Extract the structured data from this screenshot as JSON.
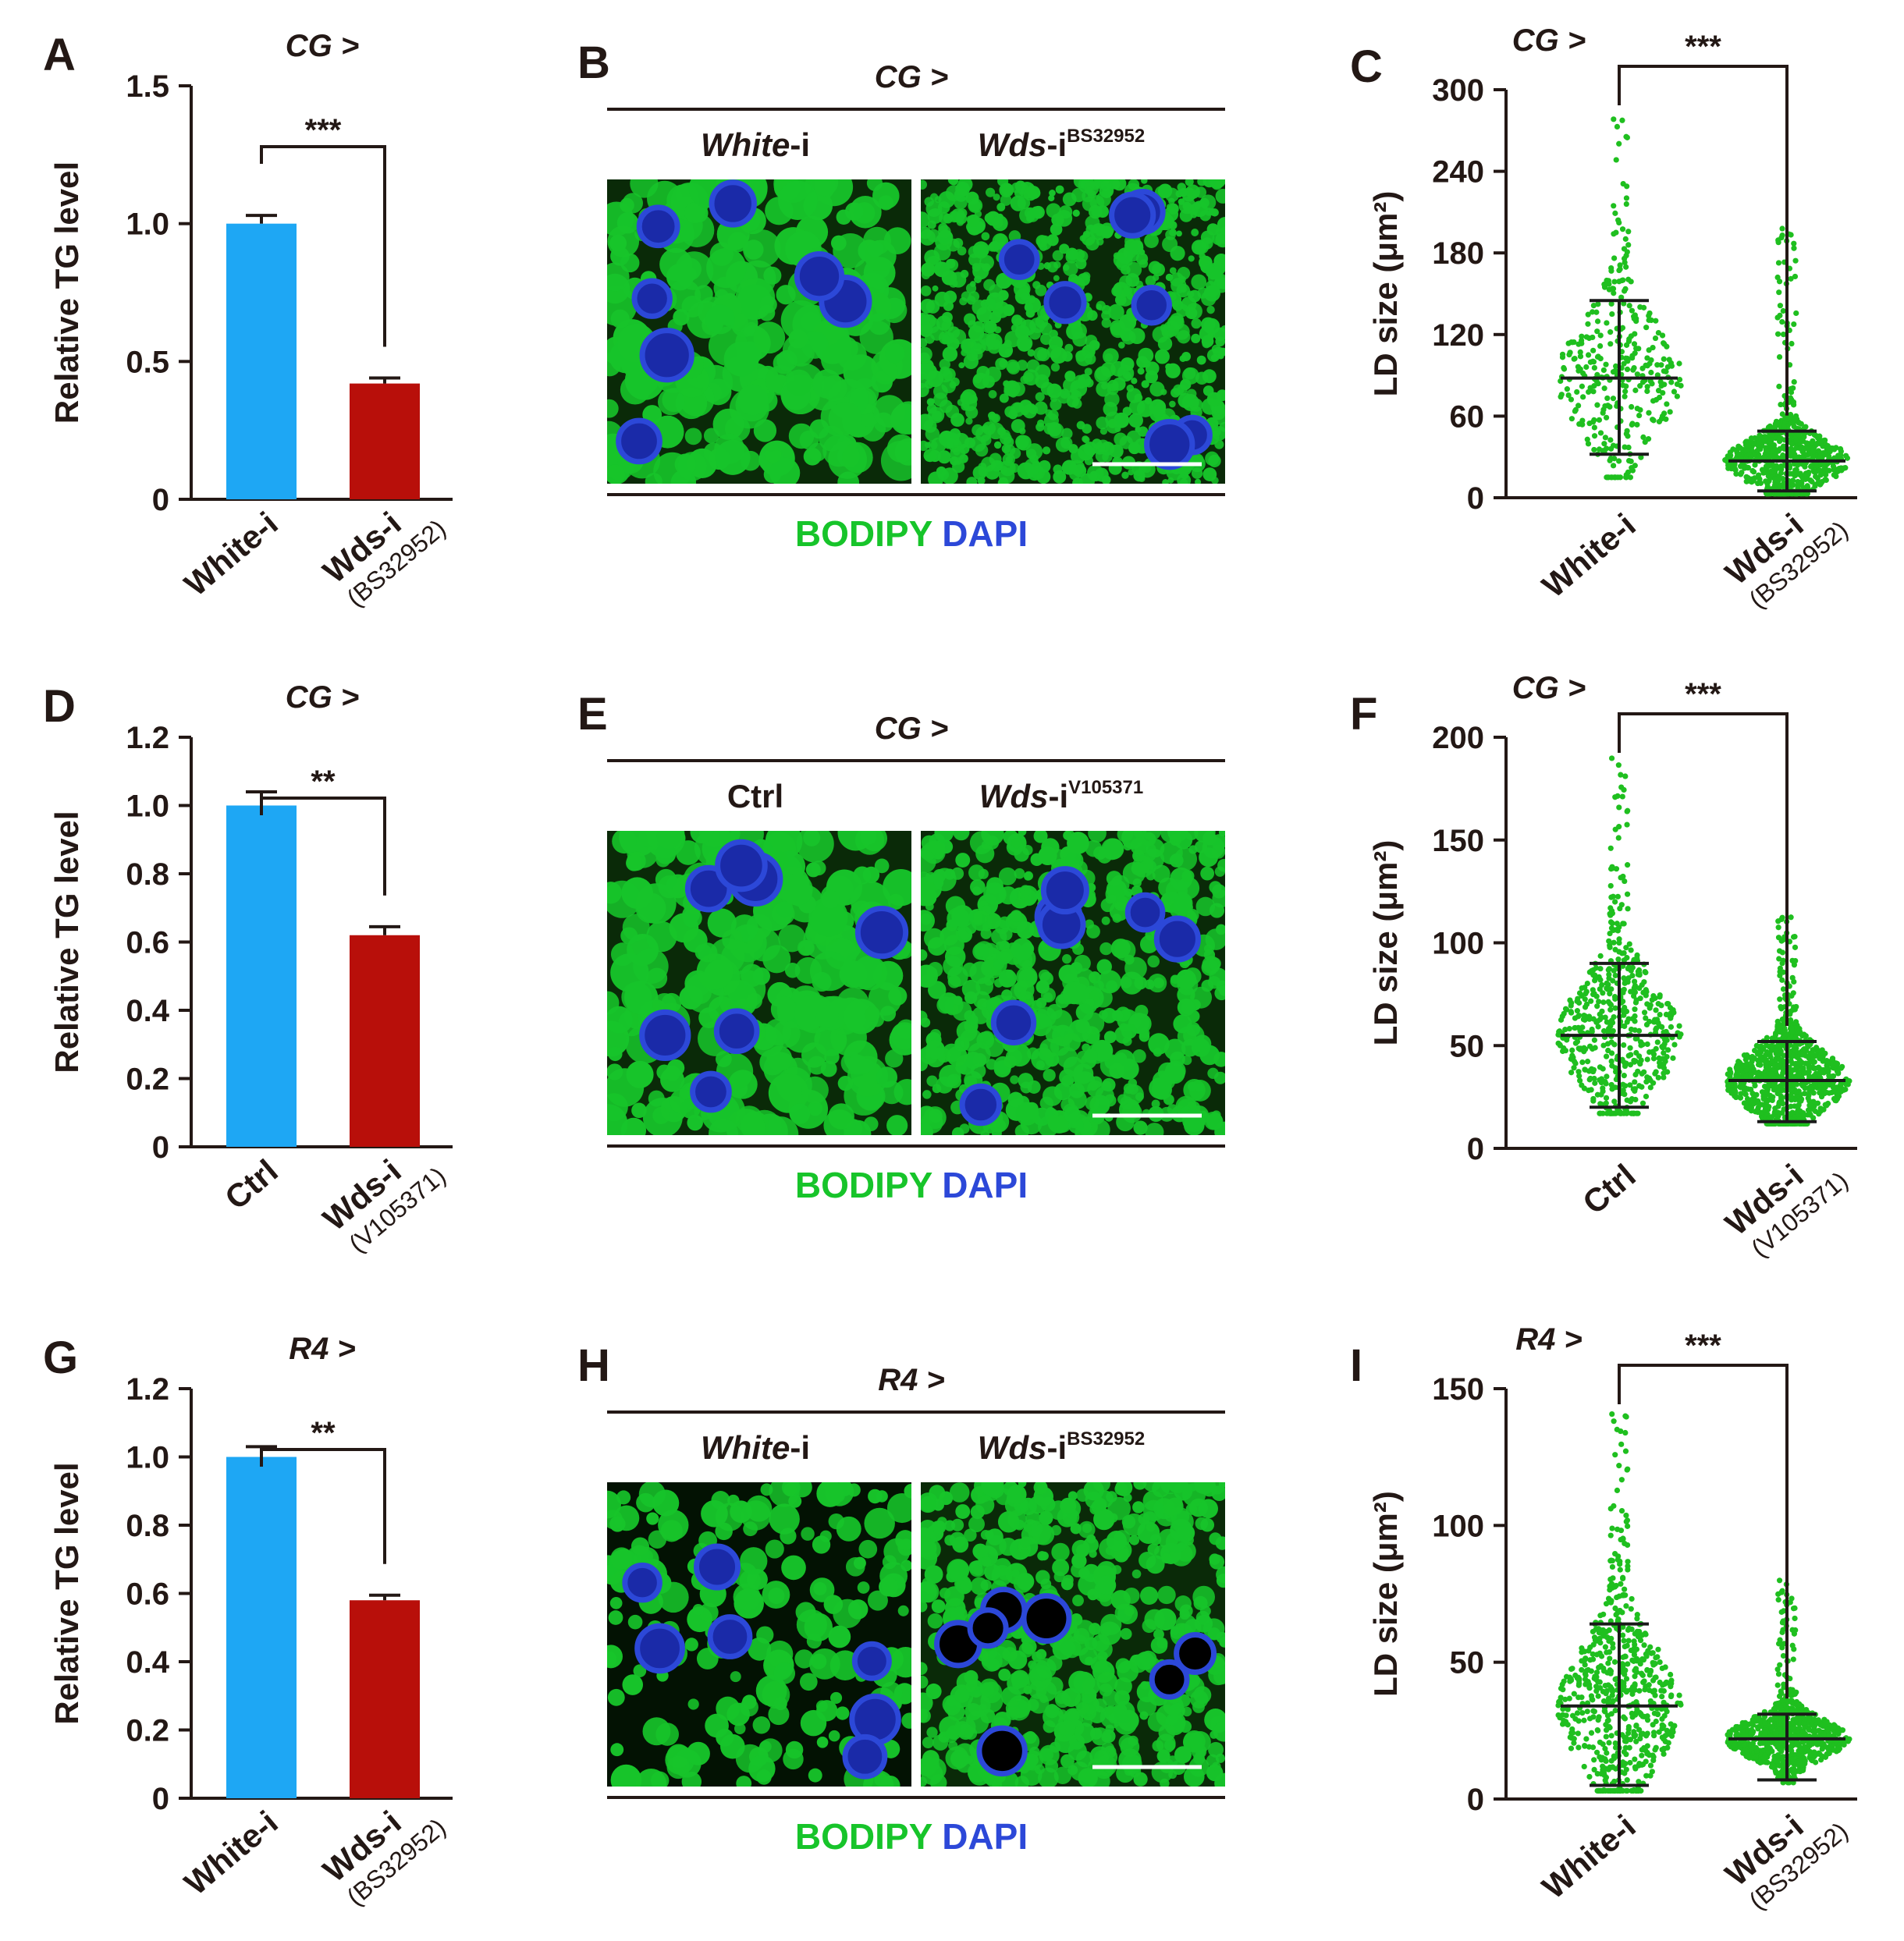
{
  "colors": {
    "control": "#1ea7f4",
    "rnai": "#b80f0a",
    "dots": "#1fbf1f",
    "bodipy": "#17c42a",
    "dapi": "#2c48d8",
    "text": "#231815"
  },
  "rows": [
    {
      "genotype": "CG >",
      "bar": {
        "label": "A",
        "ylabel": "Relative TG level",
        "ymax": 1.5,
        "ticks": [
          "1.5",
          "1.0",
          "0.5",
          "0"
        ],
        "stars": "***",
        "categories": [
          {
            "main": "White-i",
            "sub": ""
          },
          {
            "main": "Wds-i",
            "sub": "(BS32952)"
          }
        ],
        "values": [
          1.0,
          0.42
        ],
        "errors": [
          0.03,
          0.02
        ]
      },
      "image": {
        "label": "B",
        "title": "CG >",
        "left": {
          "name": "White",
          "suffix": "-i",
          "sup": ""
        },
        "right": {
          "name": "Wds",
          "suffix": "-i",
          "sup": "BS32952"
        },
        "stain_green": "BODIPY",
        "stain_blue": "DAPI",
        "left_density": "large",
        "right_density": "small"
      },
      "dot": {
        "label": "C",
        "ylabel": "LD size (μm²)",
        "ymax": 300,
        "ticks": [
          "300",
          "240",
          "180",
          "120",
          "60",
          "0"
        ],
        "stars": "***",
        "genotype": "CG >",
        "categories": [
          {
            "main": "White-i",
            "sub": ""
          },
          {
            "main": "Wds-i",
            "sub": "(BS32952)"
          }
        ],
        "groups": [
          {
            "mean": 88,
            "sd_low": 32,
            "sd_high": 145,
            "min": 15,
            "max": 292,
            "n": 330
          },
          {
            "mean": 27,
            "sd_low": 5,
            "sd_high": 49,
            "min": 3,
            "max": 205,
            "n": 700
          }
        ]
      }
    },
    {
      "genotype": "CG >",
      "bar": {
        "label": "D",
        "ylabel": "Relative TG level",
        "ymax": 1.2,
        "ticks": [
          "1.2",
          "1.0",
          "0.8",
          "0.6",
          "0.4",
          "0.2",
          "0"
        ],
        "stars": "**",
        "categories": [
          {
            "main": "Ctrl",
            "sub": ""
          },
          {
            "main": "Wds-i",
            "sub": "(V105371)"
          }
        ],
        "values": [
          1.0,
          0.62
        ],
        "errors": [
          0.04,
          0.025
        ]
      },
      "image": {
        "label": "E",
        "title": "CG >",
        "left": {
          "name": "Ctrl",
          "suffix": "",
          "sup": ""
        },
        "right": {
          "name": "Wds",
          "suffix": "-i",
          "sup": "V105371"
        },
        "stain_green": "BODIPY",
        "stain_blue": "DAPI",
        "left_density": "large",
        "right_density": "medium"
      },
      "dot": {
        "label": "F",
        "ylabel": "LD size (μm²)",
        "ymax": 200,
        "ticks": [
          "200",
          "150",
          "100",
          "50",
          "0"
        ],
        "stars": "***",
        "genotype": "CG >",
        "categories": [
          {
            "main": "Ctrl",
            "sub": ""
          },
          {
            "main": "Wds-i",
            "sub": "(V105371)"
          }
        ],
        "groups": [
          {
            "mean": 55,
            "sd_low": 20,
            "sd_high": 90,
            "min": 17,
            "max": 190,
            "n": 520
          },
          {
            "mean": 33,
            "sd_low": 13,
            "sd_high": 52,
            "min": 12,
            "max": 118,
            "n": 900
          }
        ]
      }
    },
    {
      "genotype": "R4 >",
      "bar": {
        "label": "G",
        "ylabel": "Relative TG level",
        "ymax": 1.2,
        "ticks": [
          "1.2",
          "1.0",
          "0.8",
          "0.6",
          "0.4",
          "0.2",
          "0"
        ],
        "stars": "**",
        "categories": [
          {
            "main": "White-i",
            "sub": ""
          },
          {
            "main": "Wds-i",
            "sub": "(BS32952)"
          }
        ],
        "values": [
          1.0,
          0.58
        ],
        "errors": [
          0.03,
          0.015
        ]
      },
      "image": {
        "label": "H",
        "title": "R4 >",
        "left": {
          "name": "White",
          "suffix": "-i",
          "sup": ""
        },
        "right": {
          "name": "Wds",
          "suffix": "-i",
          "sup": "BS32952"
        },
        "stain_green": "BODIPY",
        "stain_blue": "DAPI",
        "left_density": "sparse",
        "right_density": "medium"
      },
      "dot": {
        "label": "I",
        "ylabel": "LD size (μm²)",
        "ymax": 150,
        "ticks": [
          "150",
          "100",
          "50",
          "0"
        ],
        "stars": "***",
        "genotype": "R4 >",
        "categories": [
          {
            "main": "White-i",
            "sub": ""
          },
          {
            "main": "Wds-i",
            "sub": "(BS32952)"
          }
        ],
        "groups": [
          {
            "mean": 34,
            "sd_low": 5,
            "sd_high": 64,
            "min": 3,
            "max": 141,
            "n": 620
          },
          {
            "mean": 22,
            "sd_low": 7,
            "sd_high": 31,
            "min": 6,
            "max": 80,
            "n": 820
          }
        ]
      }
    }
  ],
  "chart_data": [
    {
      "type": "bar",
      "panel": "A",
      "title": "CG >",
      "ylabel": "Relative TG level",
      "categories": [
        "White-i",
        "Wds-i (BS32952)"
      ],
      "values": [
        1.0,
        0.42
      ],
      "errors": [
        0.03,
        0.02
      ],
      "ylim": [
        0,
        1.5
      ],
      "significance": "***"
    },
    {
      "type": "scatter",
      "panel": "C",
      "title": "CG >",
      "ylabel": "LD size (μm²)",
      "categories": [
        "White-i",
        "Wds-i (BS32952)"
      ],
      "means": [
        88,
        27
      ],
      "sd_low": [
        32,
        5
      ],
      "sd_high": [
        145,
        49
      ],
      "ylim": [
        0,
        300
      ],
      "significance": "***"
    },
    {
      "type": "bar",
      "panel": "D",
      "title": "CG >",
      "ylabel": "Relative TG level",
      "categories": [
        "Ctrl",
        "Wds-i (V105371)"
      ],
      "values": [
        1.0,
        0.62
      ],
      "errors": [
        0.04,
        0.025
      ],
      "ylim": [
        0,
        1.2
      ],
      "significance": "**"
    },
    {
      "type": "scatter",
      "panel": "F",
      "title": "CG >",
      "ylabel": "LD size (μm²)",
      "categories": [
        "Ctrl",
        "Wds-i (V105371)"
      ],
      "means": [
        55,
        33
      ],
      "sd_low": [
        20,
        13
      ],
      "sd_high": [
        90,
        52
      ],
      "ylim": [
        0,
        200
      ],
      "significance": "***"
    },
    {
      "type": "bar",
      "panel": "G",
      "title": "R4 >",
      "ylabel": "Relative TG level",
      "categories": [
        "White-i",
        "Wds-i (BS32952)"
      ],
      "values": [
        1.0,
        0.58
      ],
      "errors": [
        0.03,
        0.015
      ],
      "ylim": [
        0,
        1.2
      ],
      "significance": "**"
    },
    {
      "type": "scatter",
      "panel": "I",
      "title": "R4 >",
      "ylabel": "LD size (μm²)",
      "categories": [
        "White-i",
        "Wds-i (BS32952)"
      ],
      "means": [
        34,
        22
      ],
      "sd_low": [
        5,
        7
      ],
      "sd_high": [
        64,
        31
      ],
      "ylim": [
        0,
        150
      ],
      "significance": "***"
    }
  ]
}
